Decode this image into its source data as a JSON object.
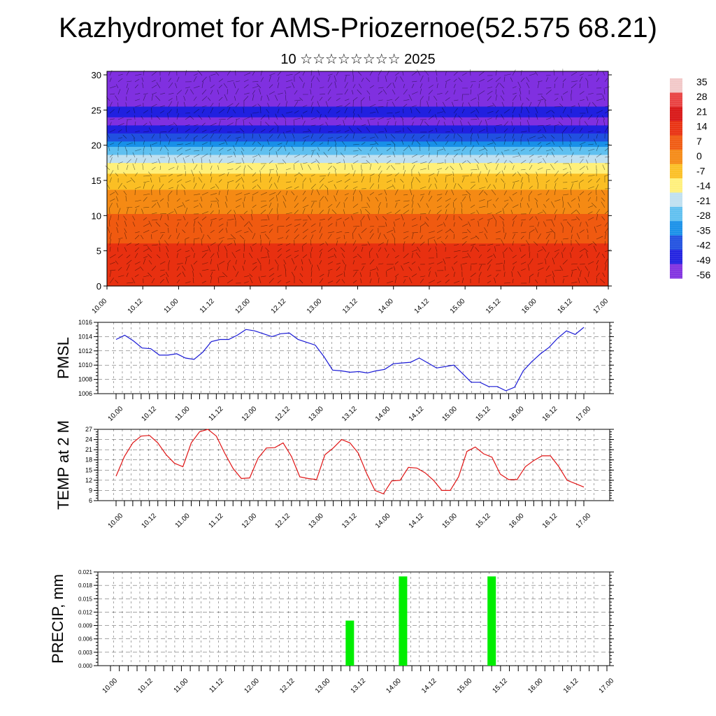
{
  "title": "Kazhydromet for AMS-Priozernoe(52.575 68.21)",
  "subtitle": "10 ☆☆☆☆☆☆☆☆ 2025",
  "colors": {
    "pmsl_line": "#1a1ad6",
    "temp_line": "#e01414",
    "precip_bar": "#00ee00",
    "grid": "#000000"
  },
  "chart_data": [
    {
      "type": "heatmap",
      "name": "cross-section",
      "y_ticks": [
        "0",
        "5",
        "10",
        "15",
        "20",
        "25",
        "30"
      ],
      "ylim": [
        0,
        30.5
      ],
      "x_ticks": [
        "10.00",
        "10.12",
        "11.00",
        "11.12",
        "12.00",
        "12.12",
        "13.00",
        "13.12",
        "14.00",
        "14.12",
        "15.00",
        "15.12",
        "16.00",
        "16.12",
        "17.00"
      ],
      "colorbar_labels": [
        "35",
        "28",
        "21",
        "14",
        "7",
        "0",
        "-7",
        "-14",
        "-21",
        "-28",
        "-35",
        "-42",
        "-49",
        "-56"
      ],
      "colorbar_colors": [
        "#f2c8c8",
        "#e84040",
        "#d81414",
        "#e83010",
        "#f05a10",
        "#f58a14",
        "#fbbf24",
        "#fff07a",
        "#bfe0f0",
        "#5fc0f0",
        "#1890e8",
        "#2050e0",
        "#2020e0",
        "#8030e0"
      ],
      "temperature_profile": {
        "levels": [
          0,
          3,
          6,
          9,
          12,
          15,
          17,
          19,
          21,
          23,
          25,
          27,
          30.5
        ],
        "values": [
          21,
          18,
          14,
          9,
          4,
          -3,
          -10,
          -22,
          -38,
          -50,
          -48,
          -52,
          -56
        ]
      },
      "grid": true
    },
    {
      "type": "line",
      "name": "PMSL",
      "ylabel": "PMSL",
      "y_ticks": [
        "1006",
        "1008",
        "1010",
        "1012",
        "1014",
        "1016"
      ],
      "ylim": [
        1006,
        1016
      ],
      "x_ticks": [
        "10.00",
        "10.12",
        "11.00",
        "11.12",
        "12.00",
        "12.12",
        "13.00",
        "13.12",
        "14.00",
        "14.12",
        "15.00",
        "15.12",
        "16.00",
        "16.12",
        "17.00"
      ],
      "series": [
        {
          "values": [
            1013.6,
            1014.2,
            1013.4,
            1012.4,
            1012.3,
            1011.4,
            1011.4,
            1011.6,
            1011.0,
            1010.8,
            1011.8,
            1013.3,
            1013.6,
            1013.6,
            1014.2,
            1015.0,
            1014.8,
            1014.4,
            1014.0,
            1014.4,
            1014.5,
            1013.6,
            1013.2,
            1012.8,
            1011.2,
            1009.3,
            1009.2,
            1009.0,
            1009.1,
            1008.9,
            1009.2,
            1009.4,
            1010.2,
            1010.3,
            1010.4,
            1011.0,
            1010.3,
            1009.6,
            1009.8,
            1010.0,
            1008.8,
            1007.6,
            1007.6,
            1007.0,
            1007.0,
            1006.4,
            1006.9,
            1009.2,
            1010.5,
            1011.6,
            1012.5,
            1013.8,
            1014.8,
            1014.3,
            1015.3
          ]
        }
      ]
    },
    {
      "type": "line",
      "name": "TEMP",
      "ylabel": "TEMP at 2 M",
      "y_ticks": [
        "6",
        "9",
        "12",
        "15",
        "18",
        "21",
        "24",
        "27"
      ],
      "ylim": [
        6,
        27
      ],
      "x_ticks": [
        "10.00",
        "10.12",
        "11.00",
        "11.12",
        "12.00",
        "12.12",
        "13.00",
        "13.12",
        "14.00",
        "14.12",
        "15.00",
        "15.12",
        "16.00",
        "16.12",
        "17.00"
      ],
      "series": [
        {
          "values": [
            13.2,
            19.0,
            23.0,
            25.0,
            25.2,
            23.0,
            19.5,
            17.0,
            16.0,
            23.0,
            26.3,
            27.0,
            25.0,
            20.0,
            15.5,
            12.5,
            12.7,
            18.5,
            21.5,
            21.6,
            23.0,
            19.0,
            13.0,
            12.5,
            12.2,
            19.5,
            21.5,
            24.0,
            23.0,
            20.0,
            14.0,
            9.0,
            8.0,
            11.8,
            12.0,
            15.8,
            15.6,
            14.2,
            12.0,
            9.0,
            9.0,
            13.0,
            20.5,
            21.8,
            19.8,
            18.8,
            13.8,
            12.2,
            12.2,
            16.0,
            17.8,
            19.2,
            19.2,
            16.0,
            12.0,
            11.0,
            10.0
          ]
        }
      ]
    },
    {
      "type": "bar",
      "name": "PRECIP",
      "ylabel": "PRECIP, mm",
      "y_ticks": [
        "0.000",
        "0.003",
        "0.006",
        "0.009",
        "0.012",
        "0.015",
        "0.018",
        "0.021"
      ],
      "ylim": [
        0,
        0.021
      ],
      "x_ticks": [
        "10.00",
        "10.12",
        "11.00",
        "11.12",
        "12.00",
        "12.12",
        "13.00",
        "13.12",
        "14.00",
        "14.12",
        "15.00",
        "15.12",
        "16.00",
        "16.12",
        "17.00"
      ],
      "bars": [
        {
          "x": "13.09",
          "value": 0.0101
        },
        {
          "x": "14.03",
          "value": 0.02
        },
        {
          "x": "15.09",
          "value": 0.02
        }
      ]
    }
  ]
}
